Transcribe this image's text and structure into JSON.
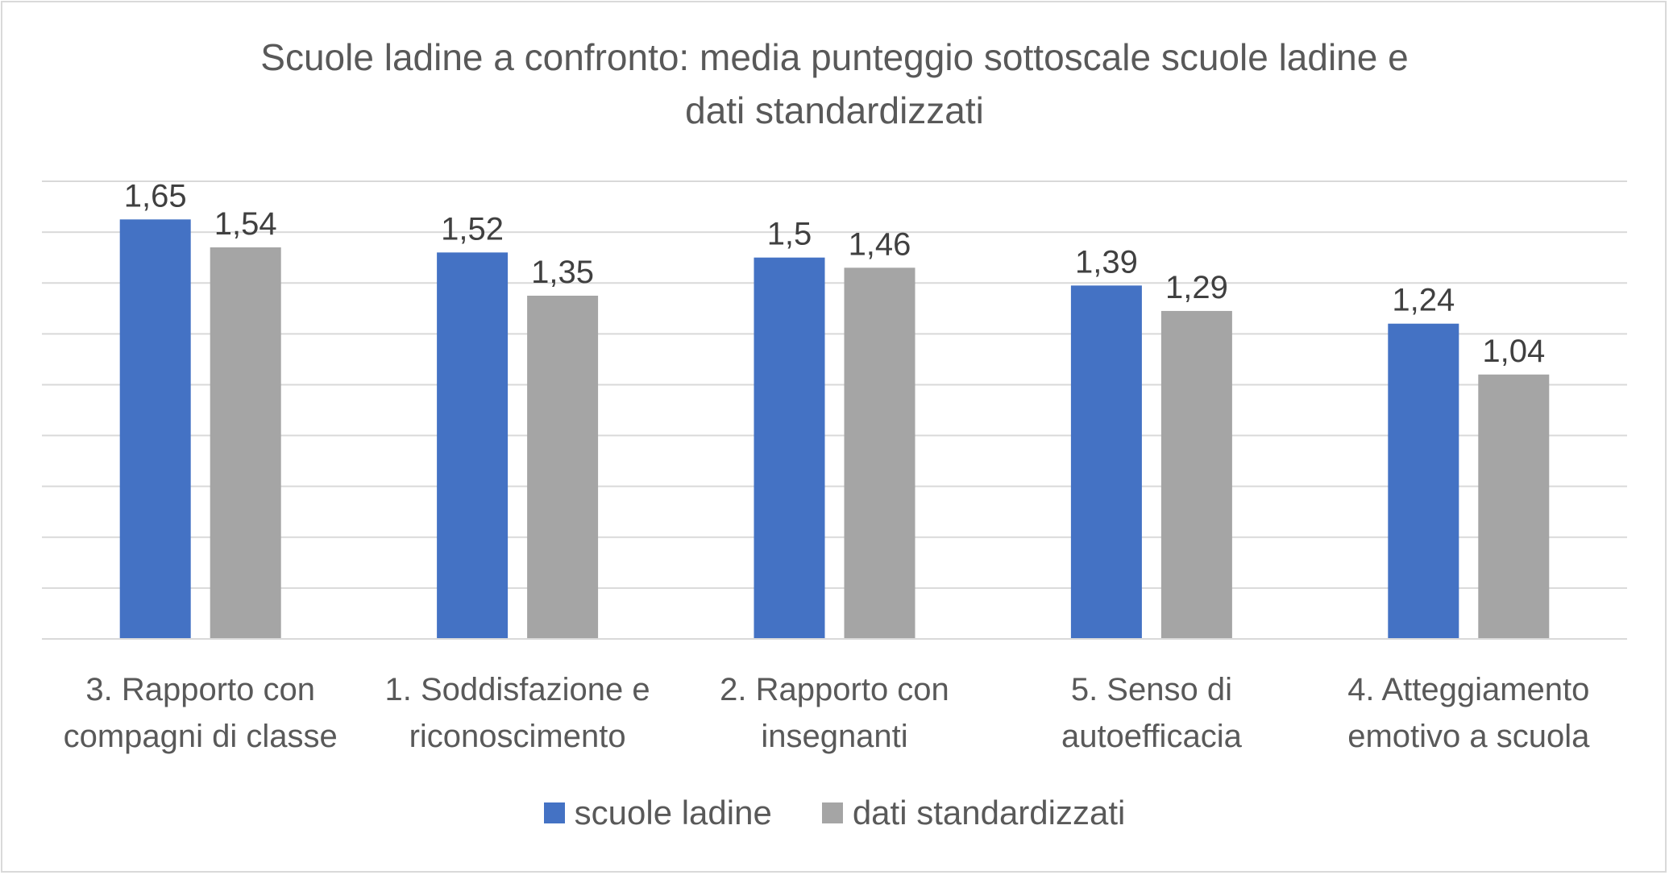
{
  "chart_data": {
    "type": "bar",
    "title_lines": [
      "Scuole ladine a confronto: media punteggio sottoscale scuole ladine e",
      "dati standardizzati"
    ],
    "categories": [
      [
        "3. Rapporto con",
        "compagni di classe"
      ],
      [
        "1. Soddisfazione e",
        "riconoscimento"
      ],
      [
        "2. Rapporto con",
        "insegnanti"
      ],
      [
        "5. Senso di",
        "autoefficacia"
      ],
      [
        "4. Atteggiamento",
        "emotivo a scuola"
      ]
    ],
    "series": [
      {
        "name": "scuole ladine",
        "color": "#4472C4",
        "values": [
          1.65,
          1.52,
          1.5,
          1.39,
          1.24
        ],
        "labels": [
          "1,65",
          "1,52",
          "1,5",
          "1,39",
          "1,24"
        ]
      },
      {
        "name": "dati standardizzati",
        "color": "#A5A5A5",
        "values": [
          1.54,
          1.35,
          1.46,
          1.29,
          1.04
        ],
        "labels": [
          "1,54",
          "1,35",
          "1,46",
          "1,29",
          "1,04"
        ]
      }
    ],
    "ylim": [
      0,
      1.8
    ],
    "ytick_step": 0.2,
    "grid": true,
    "legend_position": "bottom"
  }
}
